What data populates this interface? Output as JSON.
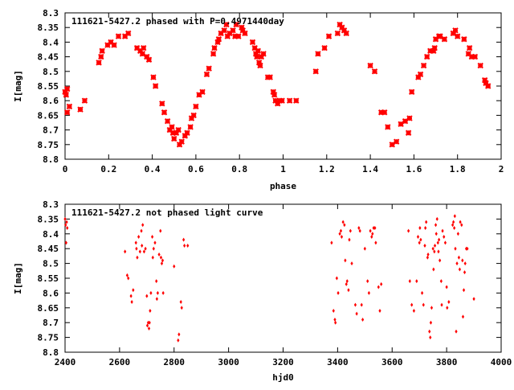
{
  "chart_data": [
    {
      "type": "scatter",
      "title": "111621-5427.2 phased with P=0.4971440day",
      "xlabel": "phase",
      "ylabel": "I[mag]",
      "xlim": [
        0,
        2
      ],
      "ylim": [
        8.8,
        8.3
      ],
      "y_inverted": true,
      "grid": false,
      "marker": "cross",
      "color": "#ff0000",
      "x_ticks": [
        "0",
        "0.2",
        "0.4",
        "0.6",
        "0.8",
        "1",
        "1.2",
        "1.4",
        "1.6",
        "1.8",
        "2"
      ],
      "y_ticks": [
        "8.3",
        "8.35",
        "8.4",
        "8.45",
        "8.5",
        "8.55",
        "8.6",
        "8.65",
        "8.7",
        "8.75",
        "8.8"
      ],
      "points": [
        [
          0.0,
          8.57
        ],
        [
          0.005,
          8.58
        ],
        [
          0.01,
          8.56
        ],
        [
          0.01,
          8.64
        ],
        [
          0.02,
          8.62
        ],
        [
          0.07,
          8.63
        ],
        [
          0.09,
          8.6
        ],
        [
          0.155,
          8.47
        ],
        [
          0.165,
          8.45
        ],
        [
          0.17,
          8.43
        ],
        [
          0.195,
          8.41
        ],
        [
          0.21,
          8.4
        ],
        [
          0.225,
          8.41
        ],
        [
          0.245,
          8.38
        ],
        [
          0.275,
          8.38
        ],
        [
          0.29,
          8.37
        ],
        [
          0.33,
          8.42
        ],
        [
          0.345,
          8.43
        ],
        [
          0.355,
          8.44
        ],
        [
          0.36,
          8.42
        ],
        [
          0.375,
          8.45
        ],
        [
          0.385,
          8.46
        ],
        [
          0.405,
          8.52
        ],
        [
          0.415,
          8.55
        ],
        [
          0.445,
          8.61
        ],
        [
          0.455,
          8.64
        ],
        [
          0.47,
          8.67
        ],
        [
          0.48,
          8.7
        ],
        [
          0.49,
          8.69
        ],
        [
          0.495,
          8.71
        ],
        [
          0.5,
          8.73
        ],
        [
          0.51,
          8.71
        ],
        [
          0.52,
          8.7
        ],
        [
          0.525,
          8.75
        ],
        [
          0.535,
          8.74
        ],
        [
          0.55,
          8.72
        ],
        [
          0.56,
          8.71
        ],
        [
          0.575,
          8.69
        ],
        [
          0.58,
          8.66
        ],
        [
          0.59,
          8.65
        ],
        [
          0.6,
          8.62
        ],
        [
          0.615,
          8.58
        ],
        [
          0.63,
          8.57
        ],
        [
          0.65,
          8.51
        ],
        [
          0.66,
          8.49
        ],
        [
          0.68,
          8.44
        ],
        [
          0.685,
          8.42
        ],
        [
          0.7,
          8.4
        ],
        [
          0.705,
          8.39
        ],
        [
          0.715,
          8.37
        ],
        [
          0.73,
          8.36
        ],
        [
          0.74,
          8.34
        ],
        [
          0.745,
          8.38
        ],
        [
          0.755,
          8.37
        ],
        [
          0.77,
          8.36
        ],
        [
          0.78,
          8.38
        ],
        [
          0.785,
          8.34
        ],
        [
          0.795,
          8.38
        ],
        [
          0.81,
          8.35
        ],
        [
          0.815,
          8.36
        ],
        [
          0.825,
          8.37
        ],
        [
          0.86,
          8.4
        ],
        [
          0.87,
          8.42
        ],
        [
          0.875,
          8.44
        ],
        [
          0.88,
          8.45
        ],
        [
          0.885,
          8.43
        ],
        [
          0.89,
          8.47
        ],
        [
          0.895,
          8.48
        ],
        [
          0.9,
          8.45
        ],
        [
          0.91,
          8.44
        ],
        [
          0.93,
          8.52
        ],
        [
          0.94,
          8.52
        ],
        [
          0.955,
          8.57
        ],
        [
          0.96,
          8.58
        ],
        [
          0.965,
          8.6
        ],
        [
          0.975,
          8.61
        ],
        [
          0.985,
          8.6
        ],
        [
          0.995,
          8.6
        ],
        [
          1.03,
          8.6
        ],
        [
          1.06,
          8.6
        ],
        [
          1.15,
          8.5
        ],
        [
          1.16,
          8.44
        ],
        [
          1.19,
          8.42
        ],
        [
          1.21,
          8.38
        ],
        [
          1.25,
          8.37
        ],
        [
          1.26,
          8.34
        ],
        [
          1.27,
          8.35
        ],
        [
          1.28,
          8.36
        ],
        [
          1.29,
          8.37
        ],
        [
          1.4,
          8.48
        ],
        [
          1.42,
          8.5
        ],
        [
          1.45,
          8.64
        ],
        [
          1.465,
          8.64
        ],
        [
          1.48,
          8.69
        ],
        [
          1.5,
          8.75
        ],
        [
          1.52,
          8.74
        ],
        [
          1.54,
          8.68
        ],
        [
          1.56,
          8.67
        ],
        [
          1.575,
          8.71
        ],
        [
          1.58,
          8.66
        ],
        [
          1.59,
          8.57
        ],
        [
          1.62,
          8.52
        ],
        [
          1.63,
          8.51
        ],
        [
          1.645,
          8.48
        ],
        [
          1.66,
          8.45
        ],
        [
          1.675,
          8.43
        ],
        [
          1.69,
          8.43
        ],
        [
          1.695,
          8.42
        ],
        [
          1.7,
          8.39
        ],
        [
          1.715,
          8.38
        ],
        [
          1.72,
          8.38
        ],
        [
          1.74,
          8.39
        ],
        [
          1.78,
          8.37
        ],
        [
          1.79,
          8.36
        ],
        [
          1.8,
          8.38
        ],
        [
          1.83,
          8.39
        ],
        [
          1.85,
          8.44
        ],
        [
          1.855,
          8.42
        ],
        [
          1.865,
          8.45
        ],
        [
          1.88,
          8.45
        ],
        [
          1.905,
          8.48
        ],
        [
          1.925,
          8.53
        ],
        [
          1.93,
          8.54
        ],
        [
          1.94,
          8.55
        ]
      ]
    },
    {
      "type": "scatter",
      "title": "111621-5427.2 not phased light curve",
      "xlabel": "hjd0",
      "ylabel": "I[mag]",
      "xlim": [
        2400,
        4000
      ],
      "ylim": [
        8.8,
        8.3
      ],
      "y_inverted": true,
      "grid": false,
      "marker": "dot",
      "color": "#ff0000",
      "x_ticks": [
        "2400",
        "2600",
        "2800",
        "3000",
        "3200",
        "3400",
        "3600",
        "3800",
        "4000"
      ],
      "y_ticks": [
        "8.3",
        "8.35",
        "8.4",
        "8.45",
        "8.5",
        "8.55",
        "8.6",
        "8.65",
        "8.7",
        "8.75",
        "8.8"
      ],
      "points": [
        [
          2400,
          8.35
        ],
        [
          2402,
          8.37
        ],
        [
          2404,
          8.43
        ],
        [
          2406,
          8.36
        ],
        [
          2408,
          8.38
        ],
        [
          2620,
          8.46
        ],
        [
          2628,
          8.54
        ],
        [
          2632,
          8.55
        ],
        [
          2642,
          8.61
        ],
        [
          2645,
          8.63
        ],
        [
          2650,
          8.59
        ],
        [
          2660,
          8.43
        ],
        [
          2662,
          8.45
        ],
        [
          2665,
          8.48
        ],
        [
          2670,
          8.41
        ],
        [
          2675,
          8.46
        ],
        [
          2680,
          8.39
        ],
        [
          2682,
          8.44
        ],
        [
          2685,
          8.37
        ],
        [
          2690,
          8.46
        ],
        [
          2695,
          8.45
        ],
        [
          2700,
          8.61
        ],
        [
          2702,
          8.71
        ],
        [
          2705,
          8.7
        ],
        [
          2708,
          8.72
        ],
        [
          2710,
          8.7
        ],
        [
          2712,
          8.66
        ],
        [
          2715,
          8.6
        ],
        [
          2720,
          8.41
        ],
        [
          2722,
          8.48
        ],
        [
          2725,
          8.45
        ],
        [
          2730,
          8.43
        ],
        [
          2735,
          8.56
        ],
        [
          2737,
          8.62
        ],
        [
          2740,
          8.6
        ],
        [
          2745,
          8.47
        ],
        [
          2750,
          8.39
        ],
        [
          2752,
          8.48
        ],
        [
          2755,
          8.5
        ],
        [
          2758,
          8.49
        ],
        [
          2760,
          8.6
        ],
        [
          2800,
          8.51
        ],
        [
          2815,
          8.76
        ],
        [
          2818,
          8.74
        ],
        [
          2825,
          8.63
        ],
        [
          2828,
          8.65
        ],
        [
          2835,
          8.42
        ],
        [
          2838,
          8.44
        ],
        [
          2850,
          8.44
        ],
        [
          3378,
          8.43
        ],
        [
          3385,
          8.66
        ],
        [
          3390,
          8.69
        ],
        [
          3392,
          8.7
        ],
        [
          3397,
          8.55
        ],
        [
          3402,
          8.6
        ],
        [
          3408,
          8.4
        ],
        [
          3412,
          8.39
        ],
        [
          3415,
          8.41
        ],
        [
          3420,
          8.36
        ],
        [
          3425,
          8.37
        ],
        [
          3428,
          8.49
        ],
        [
          3432,
          8.57
        ],
        [
          3435,
          8.56
        ],
        [
          3440,
          8.59
        ],
        [
          3443,
          8.42
        ],
        [
          3447,
          8.39
        ],
        [
          3452,
          8.5
        ],
        [
          3465,
          8.64
        ],
        [
          3470,
          8.67
        ],
        [
          3478,
          8.38
        ],
        [
          3482,
          8.39
        ],
        [
          3488,
          8.64
        ],
        [
          3492,
          8.69
        ],
        [
          3500,
          8.45
        ],
        [
          3510,
          8.56
        ],
        [
          3515,
          8.6
        ],
        [
          3520,
          8.39
        ],
        [
          3525,
          8.41
        ],
        [
          3528,
          8.4
        ],
        [
          3532,
          8.38
        ],
        [
          3537,
          8.38
        ],
        [
          3540,
          8.43
        ],
        [
          3550,
          8.58
        ],
        [
          3555,
          8.66
        ],
        [
          3560,
          8.57
        ],
        [
          3660,
          8.39
        ],
        [
          3665,
          8.56
        ],
        [
          3672,
          8.64
        ],
        [
          3680,
          8.66
        ],
        [
          3690,
          8.56
        ],
        [
          3695,
          8.41
        ],
        [
          3700,
          8.43
        ],
        [
          3702,
          8.38
        ],
        [
          3705,
          8.42
        ],
        [
          3710,
          8.6
        ],
        [
          3715,
          8.64
        ],
        [
          3720,
          8.44
        ],
        [
          3722,
          8.38
        ],
        [
          3725,
          8.36
        ],
        [
          3730,
          8.48
        ],
        [
          3732,
          8.47
        ],
        [
          3737,
          8.73
        ],
        [
          3740,
          8.75
        ],
        [
          3742,
          8.7
        ],
        [
          3745,
          8.65
        ],
        [
          3750,
          8.45
        ],
        [
          3752,
          8.52
        ],
        [
          3755,
          8.46
        ],
        [
          3757,
          8.44
        ],
        [
          3760,
          8.37
        ],
        [
          3762,
          8.4
        ],
        [
          3765,
          8.35
        ],
        [
          3768,
          8.43
        ],
        [
          3770,
          8.46
        ],
        [
          3772,
          8.42
        ],
        [
          3775,
          8.49
        ],
        [
          3780,
          8.56
        ],
        [
          3782,
          8.64
        ],
        [
          3785,
          8.39
        ],
        [
          3790,
          8.41
        ],
        [
          3795,
          8.43
        ],
        [
          3800,
          8.58
        ],
        [
          3802,
          8.65
        ],
        [
          3808,
          8.63
        ],
        [
          3822,
          8.37
        ],
        [
          3825,
          8.36
        ],
        [
          3828,
          8.38
        ],
        [
          3830,
          8.34
        ],
        [
          3832,
          8.45
        ],
        [
          3835,
          8.73
        ],
        [
          3838,
          8.5
        ],
        [
          3842,
          8.4
        ],
        [
          3845,
          8.48
        ],
        [
          3848,
          8.52
        ],
        [
          3850,
          8.36
        ],
        [
          3855,
          8.37
        ],
        [
          3858,
          8.49
        ],
        [
          3860,
          8.68
        ],
        [
          3863,
          8.59
        ],
        [
          3866,
          8.53
        ],
        [
          3868,
          8.5
        ],
        [
          3872,
          8.45
        ],
        [
          3876,
          8.45
        ],
        [
          3900,
          8.62
        ]
      ]
    }
  ]
}
